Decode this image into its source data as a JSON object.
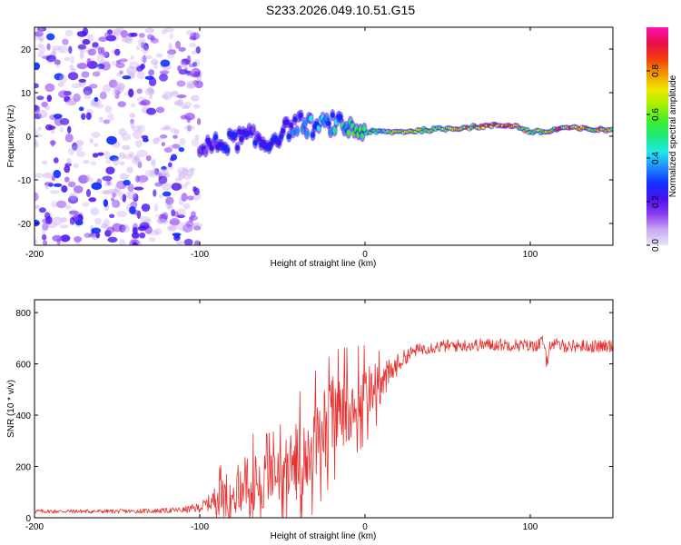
{
  "figure_title": "S233.2026.049.10.51.G15",
  "colors": {
    "snr_line": "#e8302e",
    "axis": "#000000",
    "colorbar": [
      "#e8e6fb",
      "#c9a8f0",
      "#8a3cf0",
      "#4b10f0",
      "#1030ff",
      "#1e8cff",
      "#20e8e8",
      "#20e87a",
      "#3ef028",
      "#a6f000",
      "#f0e600",
      "#f09a00",
      "#f03a10",
      "#e8104a",
      "#ff10b4"
    ]
  },
  "chart_data": [
    {
      "type": "heatmap",
      "title": "",
      "xlabel": "Height of straight line (km)",
      "ylabel": "Frequency (Hz)",
      "xlim": [
        -200,
        150
      ],
      "ylim": [
        -25,
        25
      ],
      "xticks": [
        -200,
        -100,
        0,
        100
      ],
      "xtick_labels": [
        "-200",
        "-100",
        "0",
        "100"
      ],
      "yticks": [
        -20,
        -10,
        0,
        10,
        20
      ],
      "ytick_labels": [
        "-20",
        "-10",
        "0",
        "10",
        "20"
      ],
      "colorbar": {
        "label": "Normalized spectral amplitude",
        "range": [
          0,
          1
        ],
        "ticks": [
          0.0,
          0.2,
          0.4,
          0.6,
          0.8
        ],
        "tick_labels": [
          "0.0",
          "0.2",
          "0.4",
          "0.6",
          "0.8"
        ]
      },
      "ridge": {
        "description": "dominant frequency track",
        "x": [
          -100,
          -90,
          -80,
          -70,
          -60,
          -50,
          -40,
          -30,
          -20,
          -10,
          0,
          10,
          20,
          40,
          60,
          80,
          90,
          100,
          110,
          120,
          140,
          150
        ],
        "freq": [
          -3,
          -2,
          -1,
          0,
          -2,
          1,
          3,
          2,
          3,
          2,
          1,
          1,
          1,
          1.5,
          2,
          2.5,
          2.5,
          1,
          1,
          2,
          1.5,
          1.5
        ],
        "amplitude": [
          0.2,
          0.25,
          0.3,
          0.25,
          0.3,
          0.3,
          0.35,
          0.4,
          0.45,
          0.5,
          0.55,
          0.6,
          0.7,
          0.75,
          0.8,
          0.85,
          0.85,
          0.75,
          0.8,
          0.85,
          0.8,
          0.8
        ]
      },
      "noise_region": {
        "x_range": [
          -200,
          -100
        ],
        "freq_range": [
          -25,
          25
        ],
        "amplitude": [
          0.0,
          0.25
        ]
      }
    },
    {
      "type": "line",
      "title": "",
      "xlabel": "Height of straight line (km)",
      "ylabel": "SNR (10 * v/v)",
      "xlim": [
        -200,
        150
      ],
      "ylim": [
        0,
        850
      ],
      "xticks": [
        -200,
        -100,
        0,
        100
      ],
      "xtick_labels": [
        "-200",
        "-100",
        "0",
        "100"
      ],
      "yticks": [
        0,
        200,
        400,
        600,
        800
      ],
      "ytick_labels": [
        "0",
        "200",
        "400",
        "600",
        "800"
      ],
      "series": [
        {
          "name": "SNR",
          "x": [
            -200,
            -180,
            -160,
            -140,
            -120,
            -110,
            -100,
            -95,
            -90,
            -85,
            -80,
            -75,
            -70,
            -65,
            -60,
            -55,
            -50,
            -45,
            -40,
            -35,
            -30,
            -25,
            -20,
            -15,
            -10,
            -5,
            0,
            5,
            10,
            15,
            20,
            25,
            30,
            35,
            40,
            50,
            60,
            70,
            80,
            90,
            100,
            105,
            108,
            110,
            112,
            115,
            120,
            130,
            140,
            150
          ],
          "values": [
            25,
            25,
            25,
            25,
            28,
            30,
            40,
            55,
            75,
            90,
            110,
            120,
            130,
            140,
            150,
            160,
            180,
            200,
            230,
            260,
            300,
            340,
            390,
            420,
            440,
            460,
            480,
            500,
            520,
            560,
            600,
            630,
            650,
            660,
            665,
            670,
            672,
            675,
            675,
            675,
            670,
            675,
            690,
            600,
            680,
            675,
            670,
            670,
            668,
            670
          ],
          "noise_amplitude": [
            8,
            8,
            8,
            8,
            10,
            12,
            20,
            30,
            60,
            90,
            100,
            110,
            120,
            120,
            110,
            110,
            120,
            140,
            160,
            170,
            170,
            160,
            160,
            150,
            140,
            130,
            120,
            100,
            80,
            60,
            40,
            30,
            25,
            25,
            25,
            25,
            25,
            25,
            25,
            25,
            25,
            25,
            25,
            25,
            25,
            25,
            25,
            25,
            25,
            25
          ]
        }
      ]
    }
  ]
}
